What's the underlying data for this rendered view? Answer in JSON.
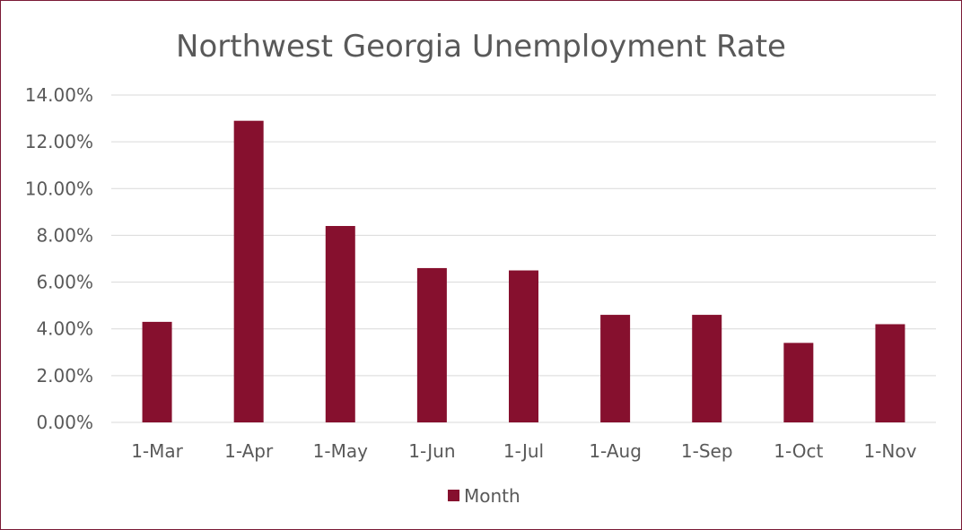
{
  "chart_data": {
    "type": "bar",
    "title": "Northwest Georgia Unemployment Rate",
    "categories": [
      "1-Mar",
      "1-Apr",
      "1-May",
      "1-Jun",
      "1-Jul",
      "1-Aug",
      "1-Sep",
      "1-Oct",
      "1-Nov"
    ],
    "series": [
      {
        "name": "Month",
        "values": [
          4.3,
          12.9,
          8.4,
          6.6,
          6.5,
          4.6,
          4.6,
          3.4,
          4.2
        ]
      }
    ],
    "yticks": [
      "0.00%",
      "2.00%",
      "4.00%",
      "6.00%",
      "8.00%",
      "10.00%",
      "12.00%",
      "14.00%"
    ],
    "ylim": [
      0,
      14
    ],
    "grid": true,
    "legend": "bottom",
    "colors": {
      "bar": "#86102e",
      "grid": "#d9d9d9",
      "frame": "#7a1a36",
      "text": "#595959"
    }
  }
}
